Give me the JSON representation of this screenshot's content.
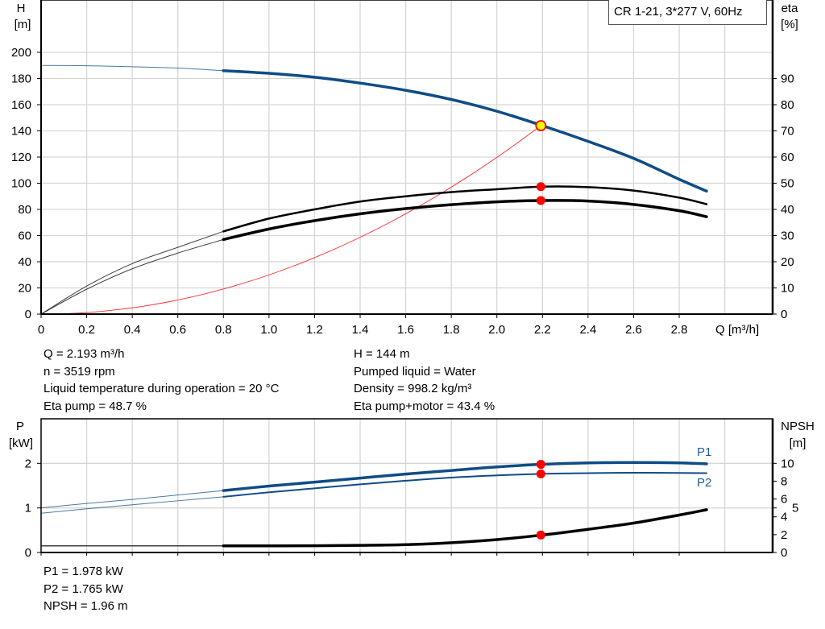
{
  "title": "CR 1-21, 3*277 V, 60Hz",
  "colors": {
    "pump_curve": "#0f4c86",
    "efficiency": "#000000",
    "system_curve": "#ff2a2a",
    "duty_point": "#ff0000",
    "duty_point_fill": "#ffff00",
    "grid": "#d6d6d6"
  },
  "info_top_left": [
    "Q = 2.193 m³/h",
    "n = 3519 rpm",
    "Liquid temperature during operation = 20 °C",
    "Eta pump = 48.7 %"
  ],
  "info_top_right": [
    "H = 144 m",
    "Pumped liquid = Water",
    "Density = 998.2 kg/m³",
    "Eta pump+motor = 43.4 %"
  ],
  "info_bottom": [
    "P1 = 1.978 kW",
    "P2 = 1.765 kW",
    "NPSH = 1.96 m"
  ],
  "chart_data": [
    {
      "type": "line",
      "title": "CR 1-21, 3*277 V, 60Hz",
      "xlabel": "Q [m³/h]",
      "ylabel": {
        "name": "H",
        "unit": "[m]"
      },
      "y2label": {
        "name": "eta",
        "unit": "[%]"
      },
      "xlim": [
        0,
        3.21
      ],
      "ylim": [
        0,
        240
      ],
      "y2lim": [
        0,
        120
      ],
      "grid": true,
      "x_ticks": [
        "0",
        "0.2",
        "0.4",
        "0.6",
        "0.8",
        "1.0",
        "1.2",
        "1.4",
        "1.6",
        "1.8",
        "2.0",
        "2.2",
        "2.4",
        "2.6",
        "2.8"
      ],
      "y_ticks": [
        "0",
        "20",
        "40",
        "60",
        "80",
        "100",
        "120",
        "140",
        "160",
        "180",
        "200"
      ],
      "y2_ticks": [
        "0",
        "10",
        "20",
        "30",
        "40",
        "50",
        "60",
        "70",
        "80",
        "90"
      ],
      "x": [
        0,
        0.2,
        0.4,
        0.6,
        0.8,
        1.0,
        1.2,
        1.4,
        1.6,
        1.8,
        2.0,
        2.2,
        2.4,
        2.6,
        2.8,
        2.92
      ],
      "operating_range_start": 0.8,
      "series": [
        {
          "axis": "left",
          "kind": "H",
          "values": [
            190,
            189.8,
            189,
            188,
            186,
            184,
            181,
            176.5,
            171,
            164,
            155,
            144,
            132,
            119,
            103,
            94
          ]
        },
        {
          "axis": "right",
          "kind": "eta_pump",
          "values": [
            0,
            10.7,
            19.3,
            25.5,
            31.6,
            36.5,
            40,
            43,
            45,
            46.6,
            47.7,
            48.7,
            48.5,
            47.2,
            44.5,
            42
          ]
        },
        {
          "axis": "right",
          "kind": "eta_pump_motor",
          "values": [
            0,
            9.5,
            17.3,
            23.3,
            28.5,
            32.5,
            35.7,
            38.3,
            40.3,
            41.8,
            42.9,
            43.4,
            43.2,
            41.9,
            39.5,
            37.2
          ]
        }
      ],
      "system_curve": {
        "q_end": 2.193,
        "h_end": 144
      },
      "duty_point": {
        "Q": 2.193,
        "H": 144,
        "eta_pump": 48.7,
        "eta_pump_motor": 43.4
      }
    },
    {
      "type": "line",
      "ylabel": {
        "name": "P",
        "unit": "[kW]"
      },
      "y2label": {
        "name": "NPSH",
        "unit": "[m]"
      },
      "xlim": [
        0,
        3.21
      ],
      "ylim": [
        0,
        3
      ],
      "y2lim": [
        0,
        15
      ],
      "grid": true,
      "y_ticks": [
        "0",
        "1",
        "2"
      ],
      "y2_ticks": [
        "0",
        "2",
        "4",
        "5",
        "6",
        "8",
        "10"
      ],
      "x": [
        0,
        0.2,
        0.4,
        0.6,
        0.8,
        1.0,
        1.2,
        1.4,
        1.6,
        1.8,
        2.0,
        2.2,
        2.4,
        2.6,
        2.8,
        2.92
      ],
      "operating_range_start": 0.8,
      "series": [
        {
          "name": "P1",
          "axis": "left",
          "values": [
            1.0,
            1.1,
            1.19,
            1.29,
            1.39,
            1.49,
            1.58,
            1.67,
            1.76,
            1.84,
            1.92,
            1.978,
            2.01,
            2.02,
            2.01,
            1.99
          ]
        },
        {
          "name": "P2",
          "axis": "left",
          "values": [
            0.88,
            0.98,
            1.07,
            1.16,
            1.25,
            1.35,
            1.44,
            1.53,
            1.61,
            1.68,
            1.73,
            1.765,
            1.78,
            1.79,
            1.785,
            1.78
          ]
        },
        {
          "axis": "right",
          "kind": "NPSH",
          "values": [
            0.75,
            0.75,
            0.75,
            0.75,
            0.75,
            0.75,
            0.76,
            0.8,
            0.88,
            1.1,
            1.45,
            1.96,
            2.6,
            3.3,
            4.2,
            4.8
          ]
        }
      ],
      "duty_point": {
        "Q": 2.193,
        "P1": 1.978,
        "P2": 1.765,
        "NPSH": 1.96
      }
    }
  ]
}
